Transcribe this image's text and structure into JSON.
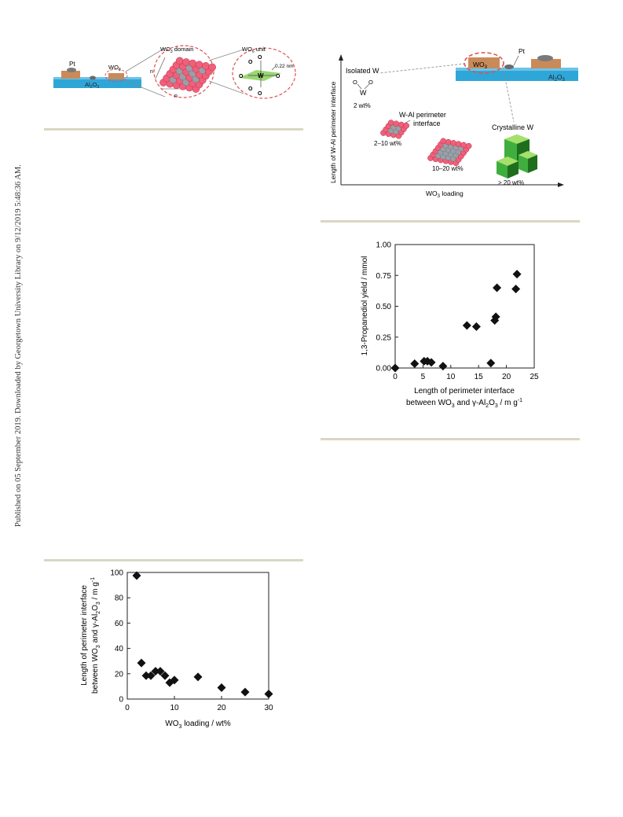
{
  "side_note": "Published on 05 September 2019. Downloaded by Georgetown University Library on 9/12/2019 5:48:36 AM.",
  "fig_top_left": {
    "pt_label": "Pt",
    "wo3_label": "WO",
    "wo3_sub": "3",
    "al2o3_label": "Al",
    "al2o3_sub": "2",
    "al2o3_tail": "O",
    "al2o3_sub2": "3",
    "domain_label": "WO",
    "domain_sub": "3",
    "domain_tail": " domain",
    "unit_label": "WO",
    "unit_sub": "6",
    "unit_tail": " unit",
    "n_left": "n",
    "n_bottom": "n",
    "distance": "0.22 nm",
    "o_atom": "O",
    "w_atom": "W"
  },
  "fig_top_right": {
    "ylabel": "Length of W-Al perimeter interface",
    "xlabel_main": "WO",
    "xlabel_sub": "3",
    "xlabel_tail": " loading",
    "isolated_label": "Isolated W",
    "isolated_wt": "2 wt%",
    "perimeter_label_1": "W-Al perimeter",
    "perimeter_label_2": "interface",
    "wt_2_10": "2–10 wt%",
    "wt_10_20": "10–20 wt%",
    "crystalline_label": "Crystalline W",
    "wt_20": "> 20 wt%",
    "inset_wo3": "WO",
    "inset_wo3_sub": "3",
    "inset_pt": "Pt",
    "inset_al": "Al",
    "inset_al_sub": "2",
    "inset_o": "O",
    "inset_o_sub": "3",
    "o_atom": "O",
    "w_atom": "W"
  },
  "chart_data": [
    {
      "type": "scatter",
      "ylabel": "1,3-Propanediol yield / mmol",
      "xlabel_line1": "Length of perimeter interface",
      "xlabel_line2": "between WO3 and γ-Al2O3 / m g-1",
      "xlim": [
        0,
        25
      ],
      "ylim": [
        0,
        1.0
      ],
      "xticks": [
        "0",
        "5",
        "10",
        "15",
        "20",
        "25"
      ],
      "yticks": [
        "0.00",
        "0.25",
        "0.50",
        "0.75",
        "1.00"
      ],
      "grid": false,
      "marker": "diamond",
      "x": [
        0,
        3.5,
        5.2,
        5.8,
        6.5,
        8.6,
        12.9,
        14.6,
        17.2,
        17.9,
        18.1,
        18.3,
        21.7,
        21.9
      ],
      "y": [
        0.0,
        0.035,
        0.055,
        0.055,
        0.045,
        0.015,
        0.345,
        0.335,
        0.04,
        0.385,
        0.415,
        0.65,
        0.64,
        0.76
      ]
    },
    {
      "type": "scatter",
      "ylabel_line1": "Length of perimeter interface",
      "ylabel_line2": "between WO3 and γ-Al2O3 / m g-1",
      "xlabel": "WO3 loading / wt%",
      "xlim": [
        0,
        30
      ],
      "ylim": [
        0,
        100
      ],
      "xticks": [
        "0",
        "10",
        "20",
        "30"
      ],
      "yticks": [
        "0",
        "20",
        "40",
        "60",
        "80",
        "100"
      ],
      "grid": false,
      "marker": "diamond",
      "x": [
        2,
        3,
        4,
        5,
        6,
        7,
        8,
        9,
        10,
        15,
        20,
        25,
        30
      ],
      "y": [
        97.5,
        28.5,
        18.5,
        18.5,
        22,
        22,
        18.5,
        13,
        15,
        17.5,
        9,
        5.5,
        4
      ]
    }
  ],
  "colors": {
    "rule": "#d9d7c3",
    "substrate": "#2fa6d8",
    "wo3_block": "#c98a5a",
    "pink_sphere": "#f0607a",
    "gray_sphere": "#9aa0a8",
    "dashed_red": "#e05050",
    "green_crystal": "#3fae3f",
    "marker": "#111111"
  }
}
